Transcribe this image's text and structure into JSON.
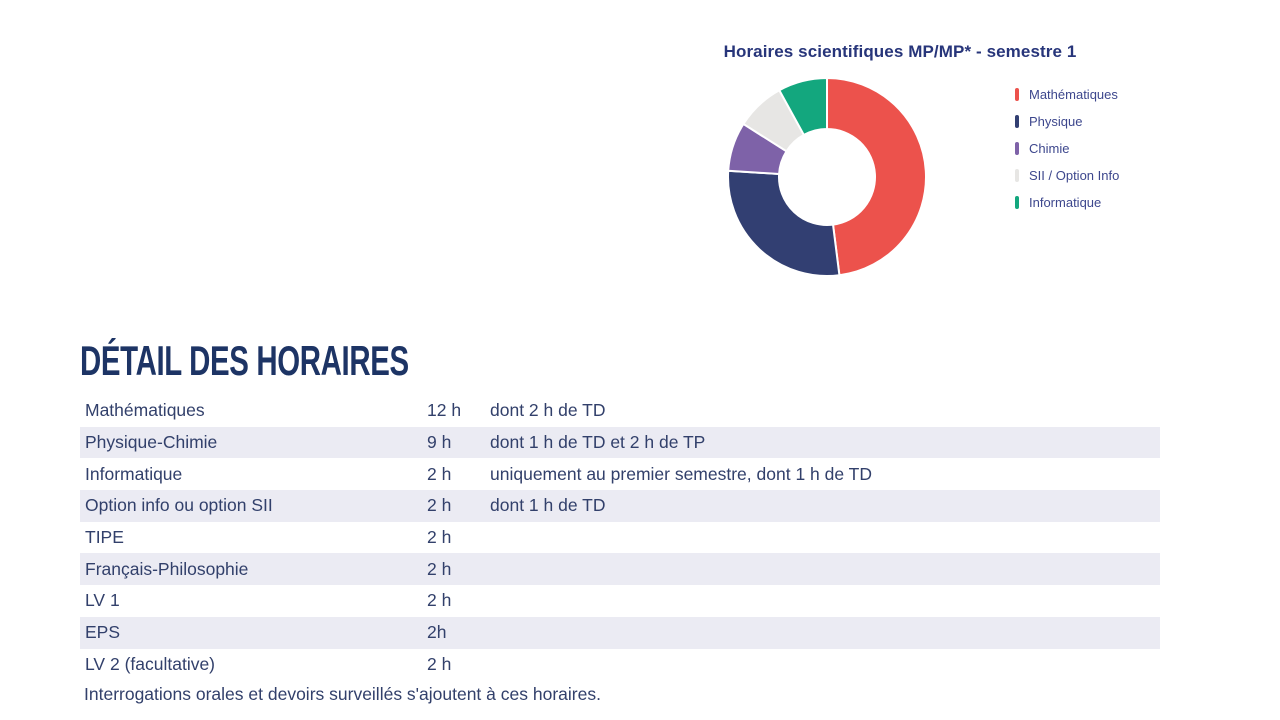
{
  "chart_data": {
    "type": "pie",
    "donut": true,
    "title": "Horaires scientifiques MP/MP* - semestre 1",
    "labels": [
      "Mathématiques",
      "Physique",
      "Chimie",
      "SII / Option Info",
      "Informatique"
    ],
    "values": [
      12,
      7,
      2,
      2,
      2
    ],
    "unit": "h",
    "total": 25,
    "colors": [
      "#EC524C",
      "#323F72",
      "#7E62A8",
      "#E7E6E4",
      "#13A77E"
    ],
    "legend_position": "right",
    "start_angle_deg": 0,
    "clockwise": true,
    "title_color": "#27357A"
  },
  "detail": {
    "heading": "DÉTAIL DES HORAIRES",
    "rows": [
      {
        "subject": "Mathématiques",
        "hours": "12 h",
        "note": "dont 2 h de TD"
      },
      {
        "subject": "Physique-Chimie",
        "hours": "9 h",
        "note": "dont 1 h de TD et 2 h de TP"
      },
      {
        "subject": "Informatique",
        "hours": "2 h",
        "note": "uniquement au premier semestre, dont 1 h de TD"
      },
      {
        "subject": "Option info ou option SII",
        "hours": "2 h",
        "note": "dont 1 h de TD"
      },
      {
        "subject": "TIPE",
        "hours": "2 h",
        "note": ""
      },
      {
        "subject": "Français-Philosophie",
        "hours": "2 h",
        "note": ""
      },
      {
        "subject": "LV 1",
        "hours": "2 h",
        "note": ""
      },
      {
        "subject": "EPS",
        "hours": "2h",
        "note": ""
      },
      {
        "subject": "LV 2 (facultative)",
        "hours": "2 h",
        "note": ""
      }
    ],
    "footer": "Interrogations orales et devoirs surveillés s'ajoutent à ces horaires.",
    "stripe_color": "#EBEBF3",
    "text_color": "#32406B"
  }
}
